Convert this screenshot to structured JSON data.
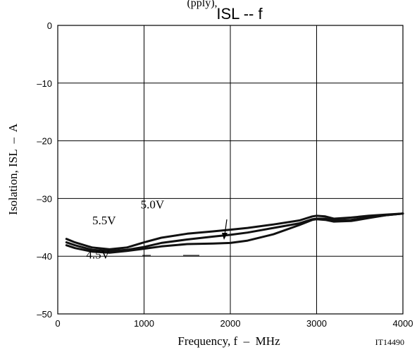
{
  "chart_data": {
    "type": "line",
    "header_fragment": "(pply),",
    "title": "ISL -- f",
    "xlabel": "Frequency, f  –  MHz",
    "ylabel": "Isolation, ISL  –  A",
    "figure_code": "IT14490",
    "xlim": [
      0,
      4000
    ],
    "ylim": [
      -50,
      0
    ],
    "x_ticks": [
      0,
      1000,
      2000,
      3000,
      4000
    ],
    "y_ticks": [
      0,
      -10,
      -20,
      -30,
      -40,
      -50
    ],
    "x_tick_labels": [
      "0",
      "1000",
      "2000",
      "3000",
      "4000"
    ],
    "y_tick_labels": [
      "0",
      "–10",
      "–20",
      "–30",
      "–40",
      "–50"
    ],
    "grid": true,
    "series": [
      {
        "name": "5.5V",
        "x": [
          100,
          200,
          400,
          600,
          800,
          1000,
          1200,
          1500,
          1800,
          2000,
          2200,
          2500,
          2800,
          2950,
          3000,
          3100,
          3200,
          3400,
          3600,
          3800,
          4000
        ],
        "y": [
          -37.0,
          -37.6,
          -38.5,
          -38.8,
          -38.5,
          -37.6,
          -36.8,
          -36.1,
          -35.7,
          -35.4,
          -35.1,
          -34.5,
          -33.8,
          -33.1,
          -33.0,
          -33.1,
          -33.5,
          -33.3,
          -33.0,
          -32.8,
          -32.6
        ]
      },
      {
        "name": "5.0V",
        "x": [
          100,
          200,
          400,
          600,
          800,
          1000,
          1200,
          1500,
          1800,
          2000,
          2200,
          2500,
          2800,
          2950,
          3000,
          3100,
          3200,
          3400,
          3600,
          3800,
          4000
        ],
        "y": [
          -37.6,
          -38.1,
          -38.9,
          -39.1,
          -38.9,
          -38.4,
          -37.7,
          -37.1,
          -36.6,
          -36.3,
          -35.9,
          -35.1,
          -34.3,
          -33.6,
          -33.5,
          -33.5,
          -33.8,
          -33.7,
          -33.3,
          -32.9,
          -32.6
        ]
      },
      {
        "name": "4.5V",
        "x": [
          100,
          200,
          400,
          600,
          800,
          1000,
          1200,
          1500,
          1800,
          2000,
          2200,
          2500,
          2800,
          2950,
          3000,
          3100,
          3200,
          3400,
          3600,
          3800,
          4000
        ],
        "y": [
          -38.1,
          -38.6,
          -39.2,
          -39.4,
          -39.1,
          -38.7,
          -38.3,
          -37.9,
          -37.8,
          -37.7,
          -37.3,
          -36.2,
          -34.6,
          -33.7,
          -33.6,
          -33.7,
          -34.0,
          -33.9,
          -33.4,
          -32.9,
          -32.6
        ]
      }
    ],
    "annotations": [
      {
        "text": "5.5V",
        "x": 400,
        "y": -34.5
      },
      {
        "text": "5.0V",
        "x": 960,
        "y": -31.7
      },
      {
        "text": "4.5V",
        "x": 330,
        "y": -40.4
      }
    ]
  }
}
